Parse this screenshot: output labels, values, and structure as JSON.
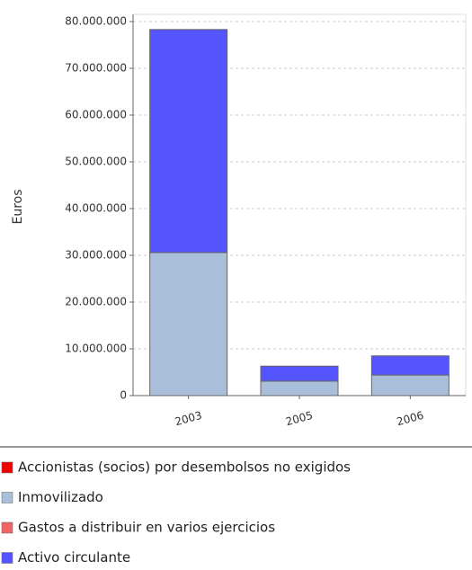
{
  "chart_data": {
    "type": "stacked_bar",
    "y_label": "Euros",
    "categories": [
      "2003",
      "2005",
      "2006"
    ],
    "series": [
      {
        "name": "Accionistas (socios) por desembolsos no exigidos",
        "color": "#ee0000",
        "values": [
          0,
          0,
          0
        ]
      },
      {
        "name": "Inmovilizado",
        "color": "#a9bfd9",
        "values": [
          30600000,
          3100000,
          4400000
        ]
      },
      {
        "name": "Gastos a distribuir en varios ejercicios",
        "color": "#f06464",
        "values": [
          0,
          0,
          0
        ]
      },
      {
        "name": "Activo circulante",
        "color": "#5555ff",
        "values": [
          47700000,
          3200000,
          4100000
        ]
      }
    ],
    "ylim": [
      0,
      80000000
    ],
    "yticks": [
      0,
      {
        "value": 10000000,
        "label": "10.000.000"
      },
      {
        "value": 20000000,
        "label": "20.000.000"
      },
      {
        "value": 30000000,
        "label": "30.000.000"
      },
      {
        "value": 40000000,
        "label": "40.000.000"
      },
      {
        "value": 50000000,
        "label": "50.000.000"
      },
      {
        "value": 60000000,
        "label": "60.000.000"
      },
      {
        "value": 70000000,
        "label": "70.000.000"
      },
      {
        "value": 80000000,
        "label": "80.000.000"
      }
    ],
    "grid": true
  }
}
